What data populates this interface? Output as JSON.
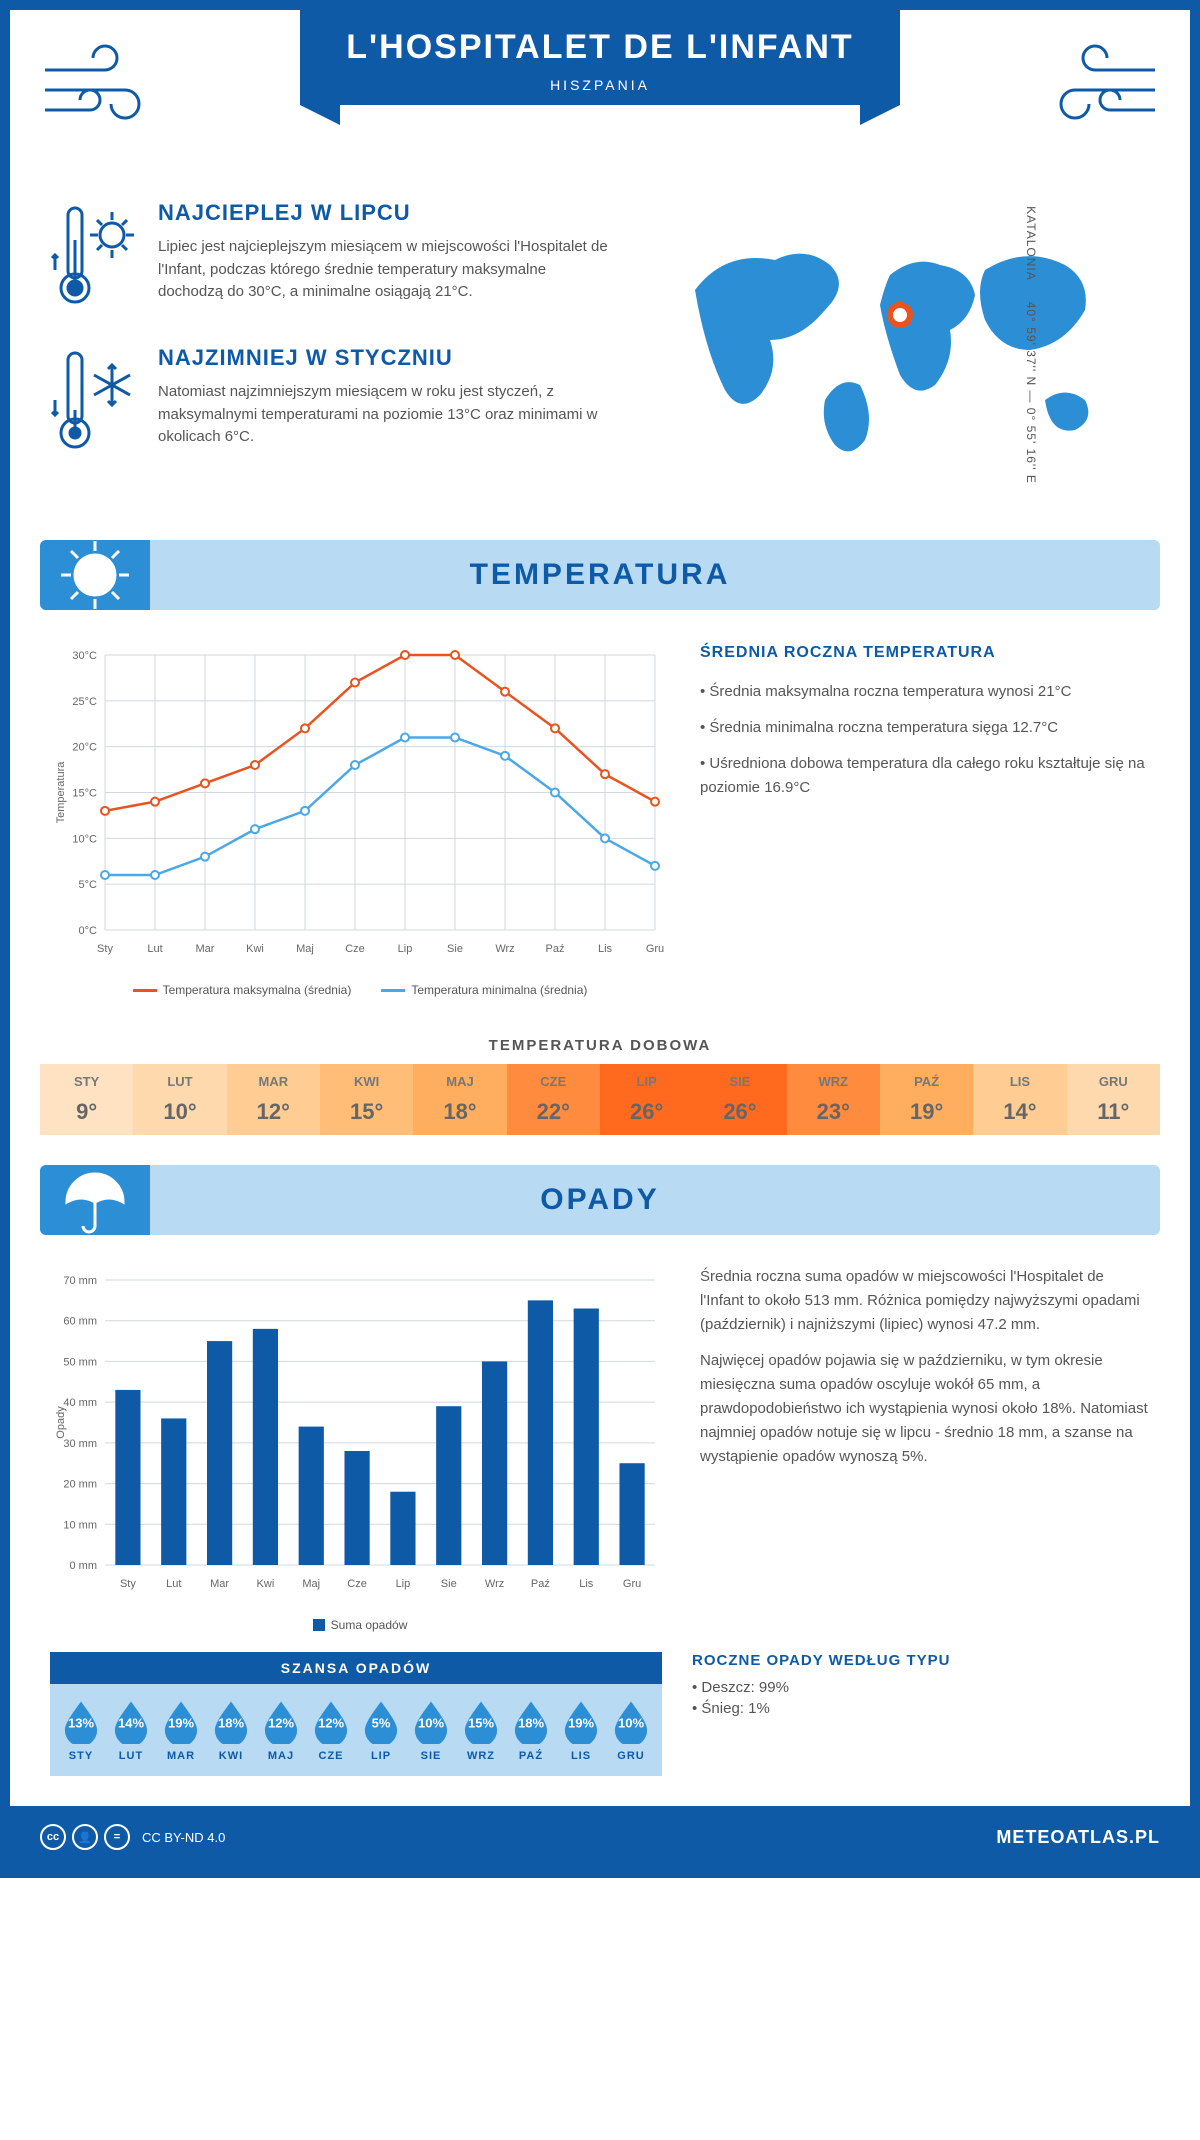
{
  "header": {
    "title": "L'HOSPITALET DE L'INFANT",
    "country": "HISZPANIA"
  },
  "intro": {
    "warmest": {
      "title": "NAJCIEPLEJ W LIPCU",
      "text": "Lipiec jest najcieplejszym miesiącem w miejscowości l'Hospitalet de l'Infant, podczas którego średnie temperatury maksymalne dochodzą do 30°C, a minimalne osiągają 21°C."
    },
    "coldest": {
      "title": "NAJZIMNIEJ W STYCZNIU",
      "text": "Natomiast najzimniejszym miesiącem w roku jest styczeń, z maksymalnymi temperaturami na poziomie 13°C oraz minimami w okolicach 6°C."
    },
    "region": "KATALONIA",
    "coords": "40° 59' 37'' N — 0° 55' 16'' E"
  },
  "temp_section": {
    "title": "TEMPERATURA",
    "stats_title": "ŚREDNIA ROCZNA TEMPERATURA",
    "stat1": "• Średnia maksymalna roczna temperatura wynosi 21°C",
    "stat2": "• Średnia minimalna roczna temperatura sięga 12.7°C",
    "stat3": "• Uśredniona dobowa temperatura dla całego roku kształtuje się na poziomie 16.9°C",
    "daily_title": "TEMPERATURA DOBOWA",
    "chart": {
      "type": "line",
      "months": [
        "Sty",
        "Lut",
        "Mar",
        "Kwi",
        "Maj",
        "Cze",
        "Lip",
        "Sie",
        "Wrz",
        "Paź",
        "Lis",
        "Gru"
      ],
      "max_series": {
        "label": "Temperatura maksymalna (średnia)",
        "color": "#e9531f",
        "values": [
          13,
          14,
          16,
          18,
          22,
          27,
          30,
          30,
          26,
          22,
          17,
          14
        ]
      },
      "min_series": {
        "label": "Temperatura minimalna (średnia)",
        "color": "#4aa8e8",
        "values": [
          6,
          6,
          8,
          11,
          13,
          18,
          21,
          21,
          19,
          15,
          10,
          7
        ]
      },
      "ylabel": "Temperatura",
      "ymin": 0,
      "ymax": 30,
      "ystep": 5
    },
    "daily_table": {
      "months": [
        "STY",
        "LUT",
        "MAR",
        "KWI",
        "MAJ",
        "CZE",
        "LIP",
        "SIE",
        "WRZ",
        "PAŹ",
        "LIS",
        "GRU"
      ],
      "values": [
        "9°",
        "10°",
        "12°",
        "15°",
        "18°",
        "22°",
        "26°",
        "26°",
        "23°",
        "19°",
        "14°",
        "11°"
      ],
      "colors": [
        "#ffe2c2",
        "#ffd9ae",
        "#ffcd94",
        "#ffbd78",
        "#ffad5e",
        "#ff8b3e",
        "#ff6a1f",
        "#ff6a1f",
        "#ff8b3e",
        "#ffad5e",
        "#ffcd94",
        "#ffd9ae"
      ]
    }
  },
  "rain_section": {
    "title": "OPADY",
    "para1": "Średnia roczna suma opadów w miejscowości l'Hospitalet de l'Infant to około 513 mm. Różnica pomiędzy najwyższymi opadami (październik) i najniższymi (lipiec) wynosi 47.2 mm.",
    "para2": "Najwięcej opadów pojawia się w październiku, w tym okresie miesięczna suma opadów oscyluje wokół 65 mm, a prawdopodobieństwo ich wystąpienia wynosi około 18%. Natomiast najmniej opadów notuje się w lipcu - średnio 18 mm, a szanse na wystąpienie opadów wynoszą 5%.",
    "chart": {
      "type": "bar",
      "months": [
        "Sty",
        "Lut",
        "Mar",
        "Kwi",
        "Maj",
        "Cze",
        "Lip",
        "Sie",
        "Wrz",
        "Paź",
        "Lis",
        "Gru"
      ],
      "values": [
        43,
        36,
        55,
        58,
        34,
        28,
        18,
        39,
        50,
        65,
        63,
        25
      ],
      "ylabel": "Opady",
      "ymin": 0,
      "ymax": 70,
      "ystep": 10,
      "color": "#0e5aa7",
      "legend": "Suma opadów"
    },
    "chance": {
      "title": "SZANSA OPADÓW",
      "months": [
        "STY",
        "LUT",
        "MAR",
        "KWI",
        "MAJ",
        "CZE",
        "LIP",
        "SIE",
        "WRZ",
        "PAŹ",
        "LIS",
        "GRU"
      ],
      "values": [
        "13%",
        "14%",
        "19%",
        "18%",
        "12%",
        "12%",
        "5%",
        "10%",
        "15%",
        "18%",
        "19%",
        "10%"
      ],
      "drop_color": "#2c8fd6"
    },
    "type_title": "ROCZNE OPADY WEDŁUG TYPU",
    "type_rain": "• Deszcz: 99%",
    "type_snow": "• Śnieg: 1%"
  },
  "footer": {
    "license": "CC BY-ND 4.0",
    "site": "METEOATLAS.PL"
  }
}
